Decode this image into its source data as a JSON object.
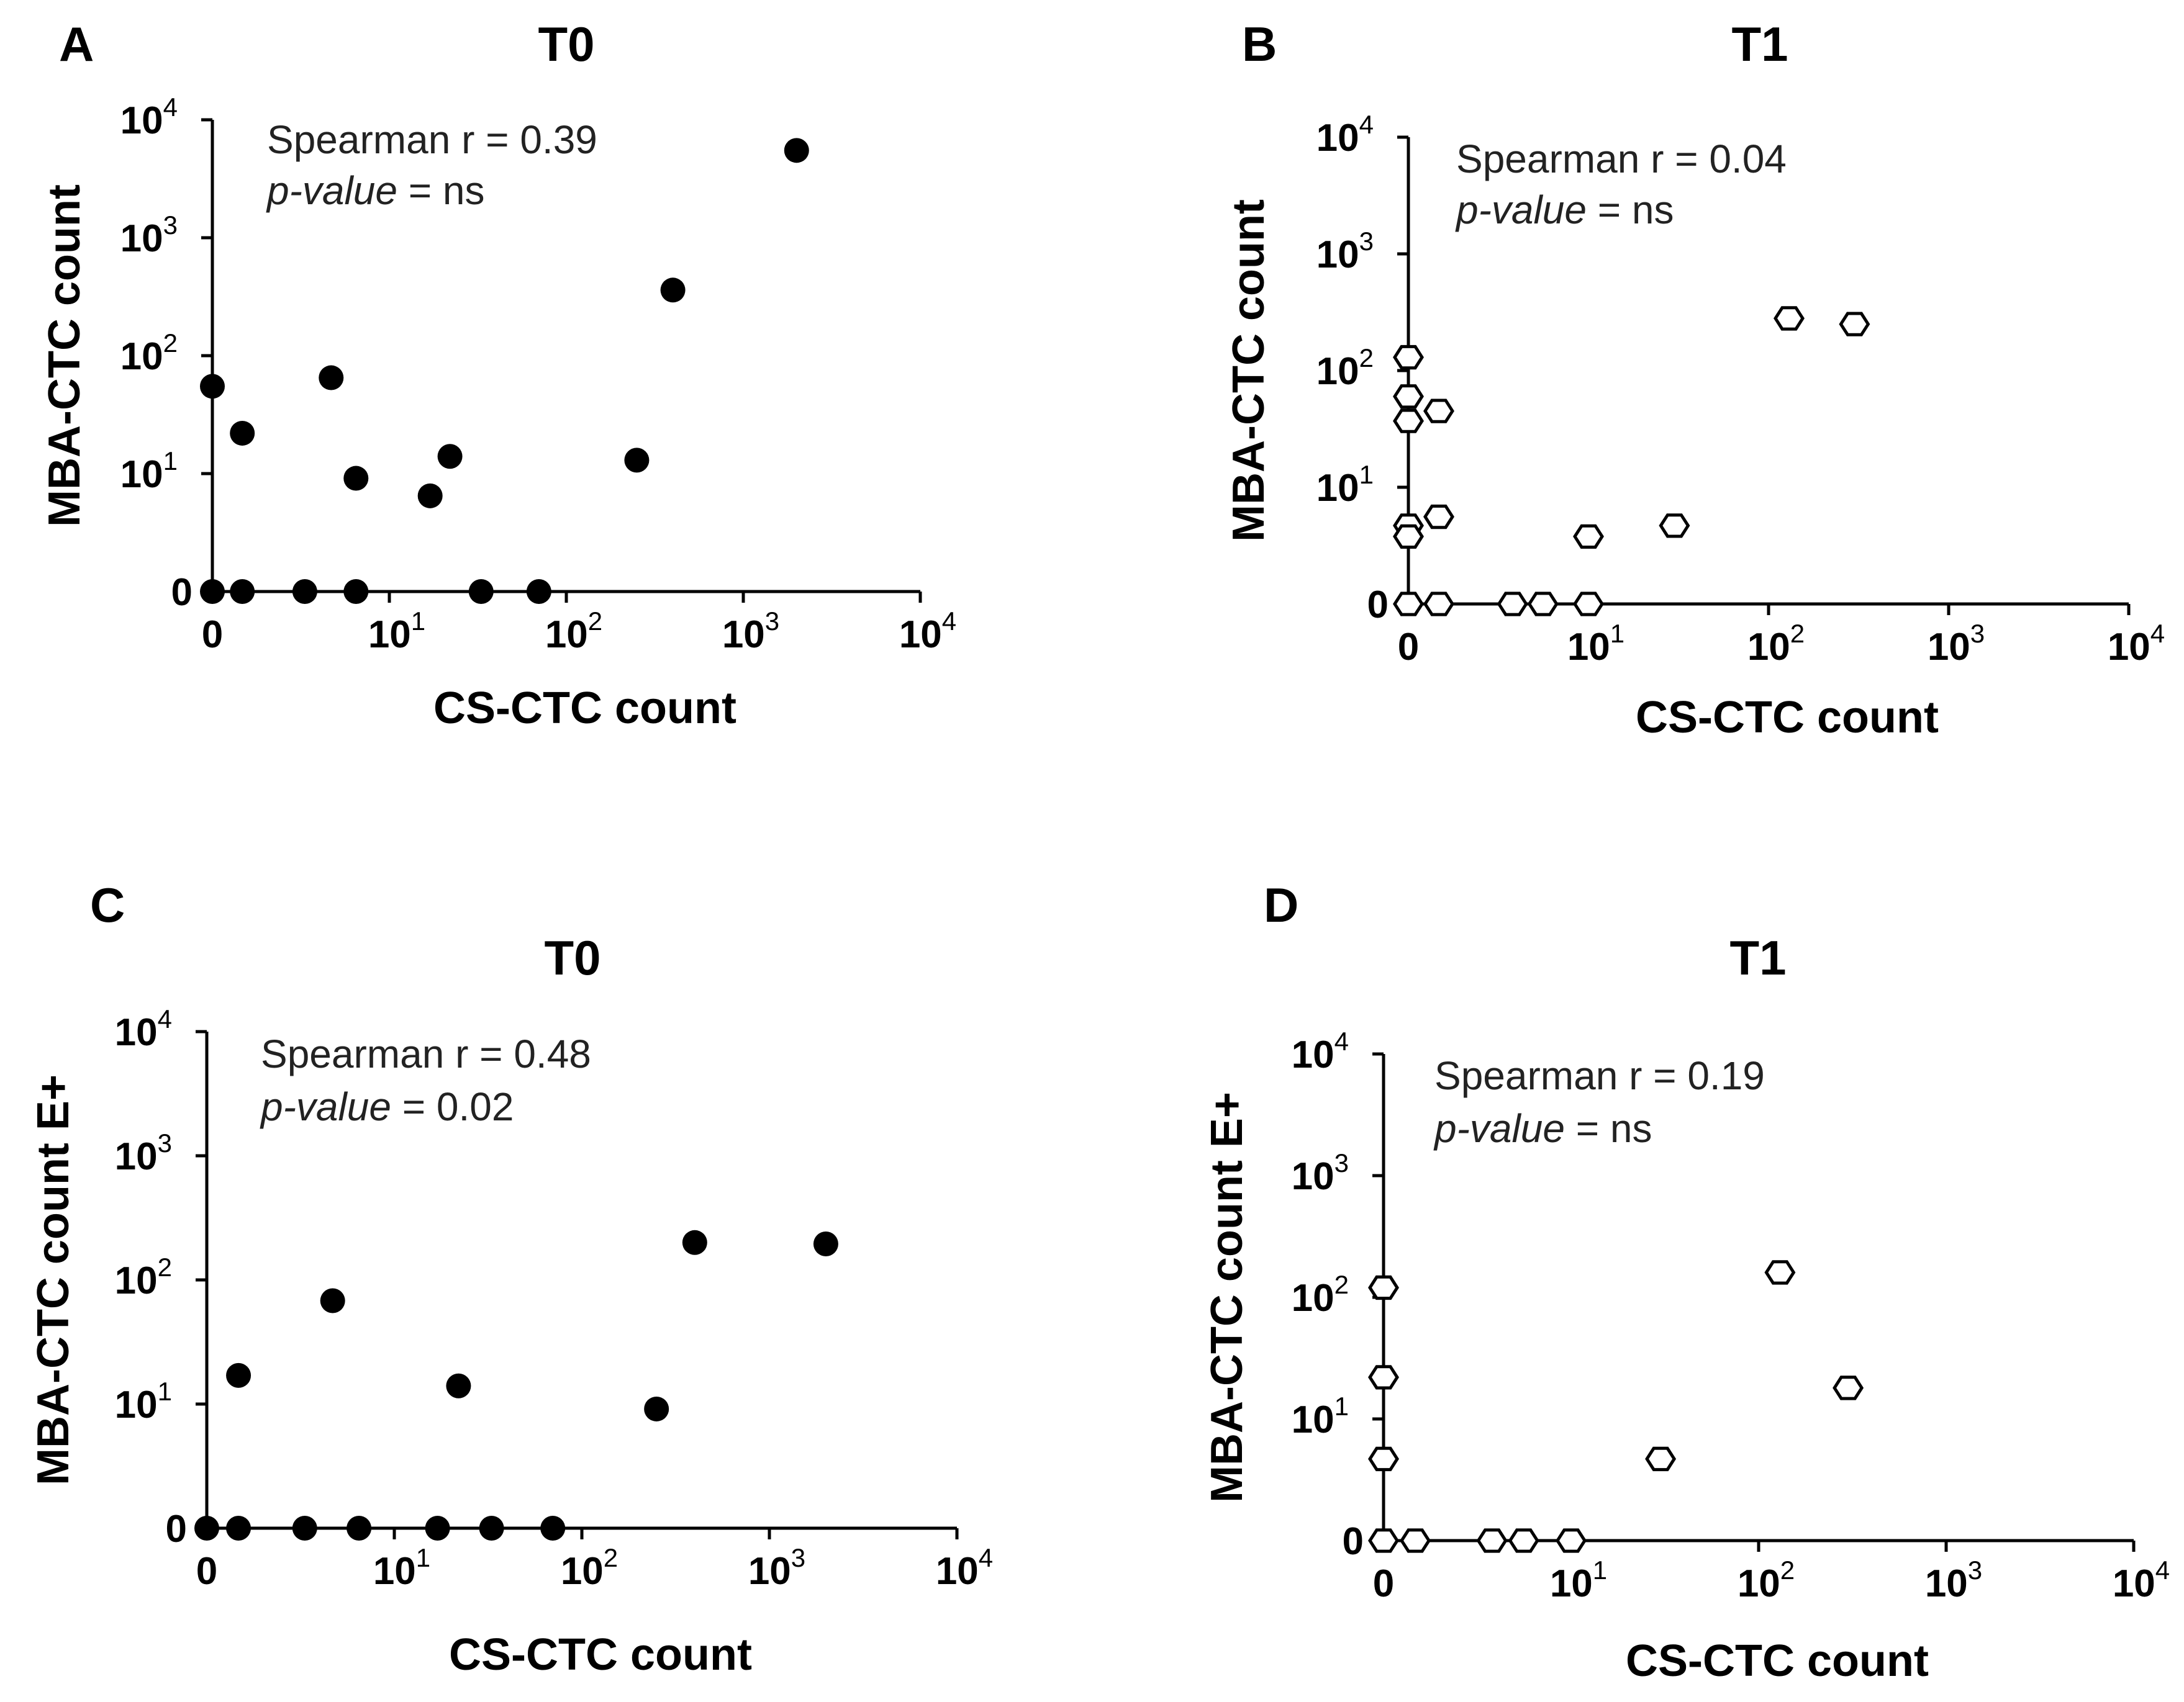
{
  "figure": {
    "chart_data": [
      {
        "panel": "A",
        "type": "scatter",
        "title": "T0",
        "xlabel": "CS-CTC count",
        "ylabel": "MBA-CTC count",
        "scale": "symlog",
        "xlim": [
          0,
          10000
        ],
        "ylim": [
          0,
          10000
        ],
        "x_ticks": [
          "0",
          "10^1",
          "10^2",
          "10^3",
          "10^4"
        ],
        "y_ticks": [
          "0",
          "10^1",
          "10^2",
          "10^3",
          "10^4"
        ],
        "marker": "filled-circle",
        "annotation": {
          "stat_line": "Spearman r = 0.39",
          "p_label": "p-value",
          "p_value": " = ns"
        },
        "points": [
          {
            "x": 0,
            "y": 55
          },
          {
            "x": 0.5,
            "y": 22
          },
          {
            "x": 4,
            "y": 65
          },
          {
            "x": 6,
            "y": 9
          },
          {
            "x": 17,
            "y": 6
          },
          {
            "x": 22,
            "y": 14
          },
          {
            "x": 250,
            "y": 13
          },
          {
            "x": 400,
            "y": 360
          },
          {
            "x": 2000,
            "y": 5500
          },
          {
            "x": 0,
            "y": 0
          },
          {
            "x": 0.5,
            "y": 0
          },
          {
            "x": 2.5,
            "y": 0
          },
          {
            "x": 6,
            "y": 0
          },
          {
            "x": 33,
            "y": 0
          },
          {
            "x": 70,
            "y": 0
          }
        ]
      },
      {
        "panel": "B",
        "type": "scatter",
        "title": "T1",
        "xlabel": "CS-CTC count",
        "ylabel": "MBA-CTC count",
        "scale": "symlog",
        "xlim": [
          0,
          10000
        ],
        "ylim": [
          0,
          10000
        ],
        "x_ticks": [
          "0",
          "10^1",
          "10^2",
          "10^3",
          "10^4"
        ],
        "y_ticks": [
          "0",
          "10^1",
          "10^2",
          "10^3",
          "10^4"
        ],
        "marker": "open-hexagon",
        "annotation": {
          "stat_line": "Spearman r = 0.04",
          "p_label": "p-value",
          "p_value": " = ns"
        },
        "points": [
          {
            "x": 0,
            "y": 130
          },
          {
            "x": 0,
            "y": 60
          },
          {
            "x": 0.5,
            "y": 45
          },
          {
            "x": 0,
            "y": 37
          },
          {
            "x": 0.5,
            "y": 5
          },
          {
            "x": 0,
            "y": 4
          },
          {
            "x": 0,
            "y": 3
          },
          {
            "x": 10,
            "y": 3
          },
          {
            "x": 30,
            "y": 4
          },
          {
            "x": 130,
            "y": 280
          },
          {
            "x": 300,
            "y": 250
          },
          {
            "x": 0,
            "y": 0
          },
          {
            "x": 0.5,
            "y": 0
          },
          {
            "x": 3,
            "y": 0
          },
          {
            "x": 5,
            "y": 0
          },
          {
            "x": 10,
            "y": 0
          }
        ]
      },
      {
        "panel": "C",
        "type": "scatter",
        "title": "T0",
        "xlabel": "CS-CTC count",
        "ylabel": "MBA-CTC count E+",
        "scale": "symlog",
        "xlim": [
          0,
          10000
        ],
        "ylim": [
          0,
          10000
        ],
        "x_ticks": [
          "0",
          "10^1",
          "10^2",
          "10^3",
          "10^4"
        ],
        "y_ticks": [
          "0",
          "10^1",
          "10^2",
          "10^3",
          "10^4"
        ],
        "marker": "filled-circle",
        "annotation": {
          "stat_line": "Spearman r = 0.48",
          "p_label": "p-value",
          "p_value": " = 0.02"
        },
        "points": [
          {
            "x": 0.5,
            "y": 17
          },
          {
            "x": 4,
            "y": 68
          },
          {
            "x": 22,
            "y": 14
          },
          {
            "x": 250,
            "y": 9
          },
          {
            "x": 400,
            "y": 200
          },
          {
            "x": 2000,
            "y": 195
          },
          {
            "x": 0,
            "y": 0
          },
          {
            "x": 0.5,
            "y": 0
          },
          {
            "x": 2.5,
            "y": 0
          },
          {
            "x": 6,
            "y": 0
          },
          {
            "x": 17,
            "y": 0
          },
          {
            "x": 33,
            "y": 0
          },
          {
            "x": 70,
            "y": 0
          }
        ]
      },
      {
        "panel": "D",
        "type": "scatter",
        "title": "T1",
        "xlabel": "CS-CTC count",
        "ylabel": "MBA-CTC count E+",
        "scale": "symlog",
        "xlim": [
          0,
          10000
        ],
        "ylim": [
          0,
          10000
        ],
        "x_ticks": [
          "0",
          "10^1",
          "10^2",
          "10^3",
          "10^4"
        ],
        "y_ticks": [
          "0",
          "10^1",
          "10^2",
          "10^3",
          "10^4"
        ],
        "marker": "open-hexagon",
        "annotation": {
          "stat_line": "Spearman r = 0.19",
          "p_label": "p-value",
          "p_value": " = ns"
        },
        "points": [
          {
            "x": 0,
            "y": 120
          },
          {
            "x": 0,
            "y": 22
          },
          {
            "x": 0,
            "y": 4
          },
          {
            "x": 30,
            "y": 4
          },
          {
            "x": 130,
            "y": 160
          },
          {
            "x": 300,
            "y": 18
          },
          {
            "x": 0,
            "y": 0
          },
          {
            "x": 0.5,
            "y": 0
          },
          {
            "x": 3,
            "y": 0
          },
          {
            "x": 5,
            "y": 0
          },
          {
            "x": 10,
            "y": 0
          }
        ]
      }
    ]
  }
}
